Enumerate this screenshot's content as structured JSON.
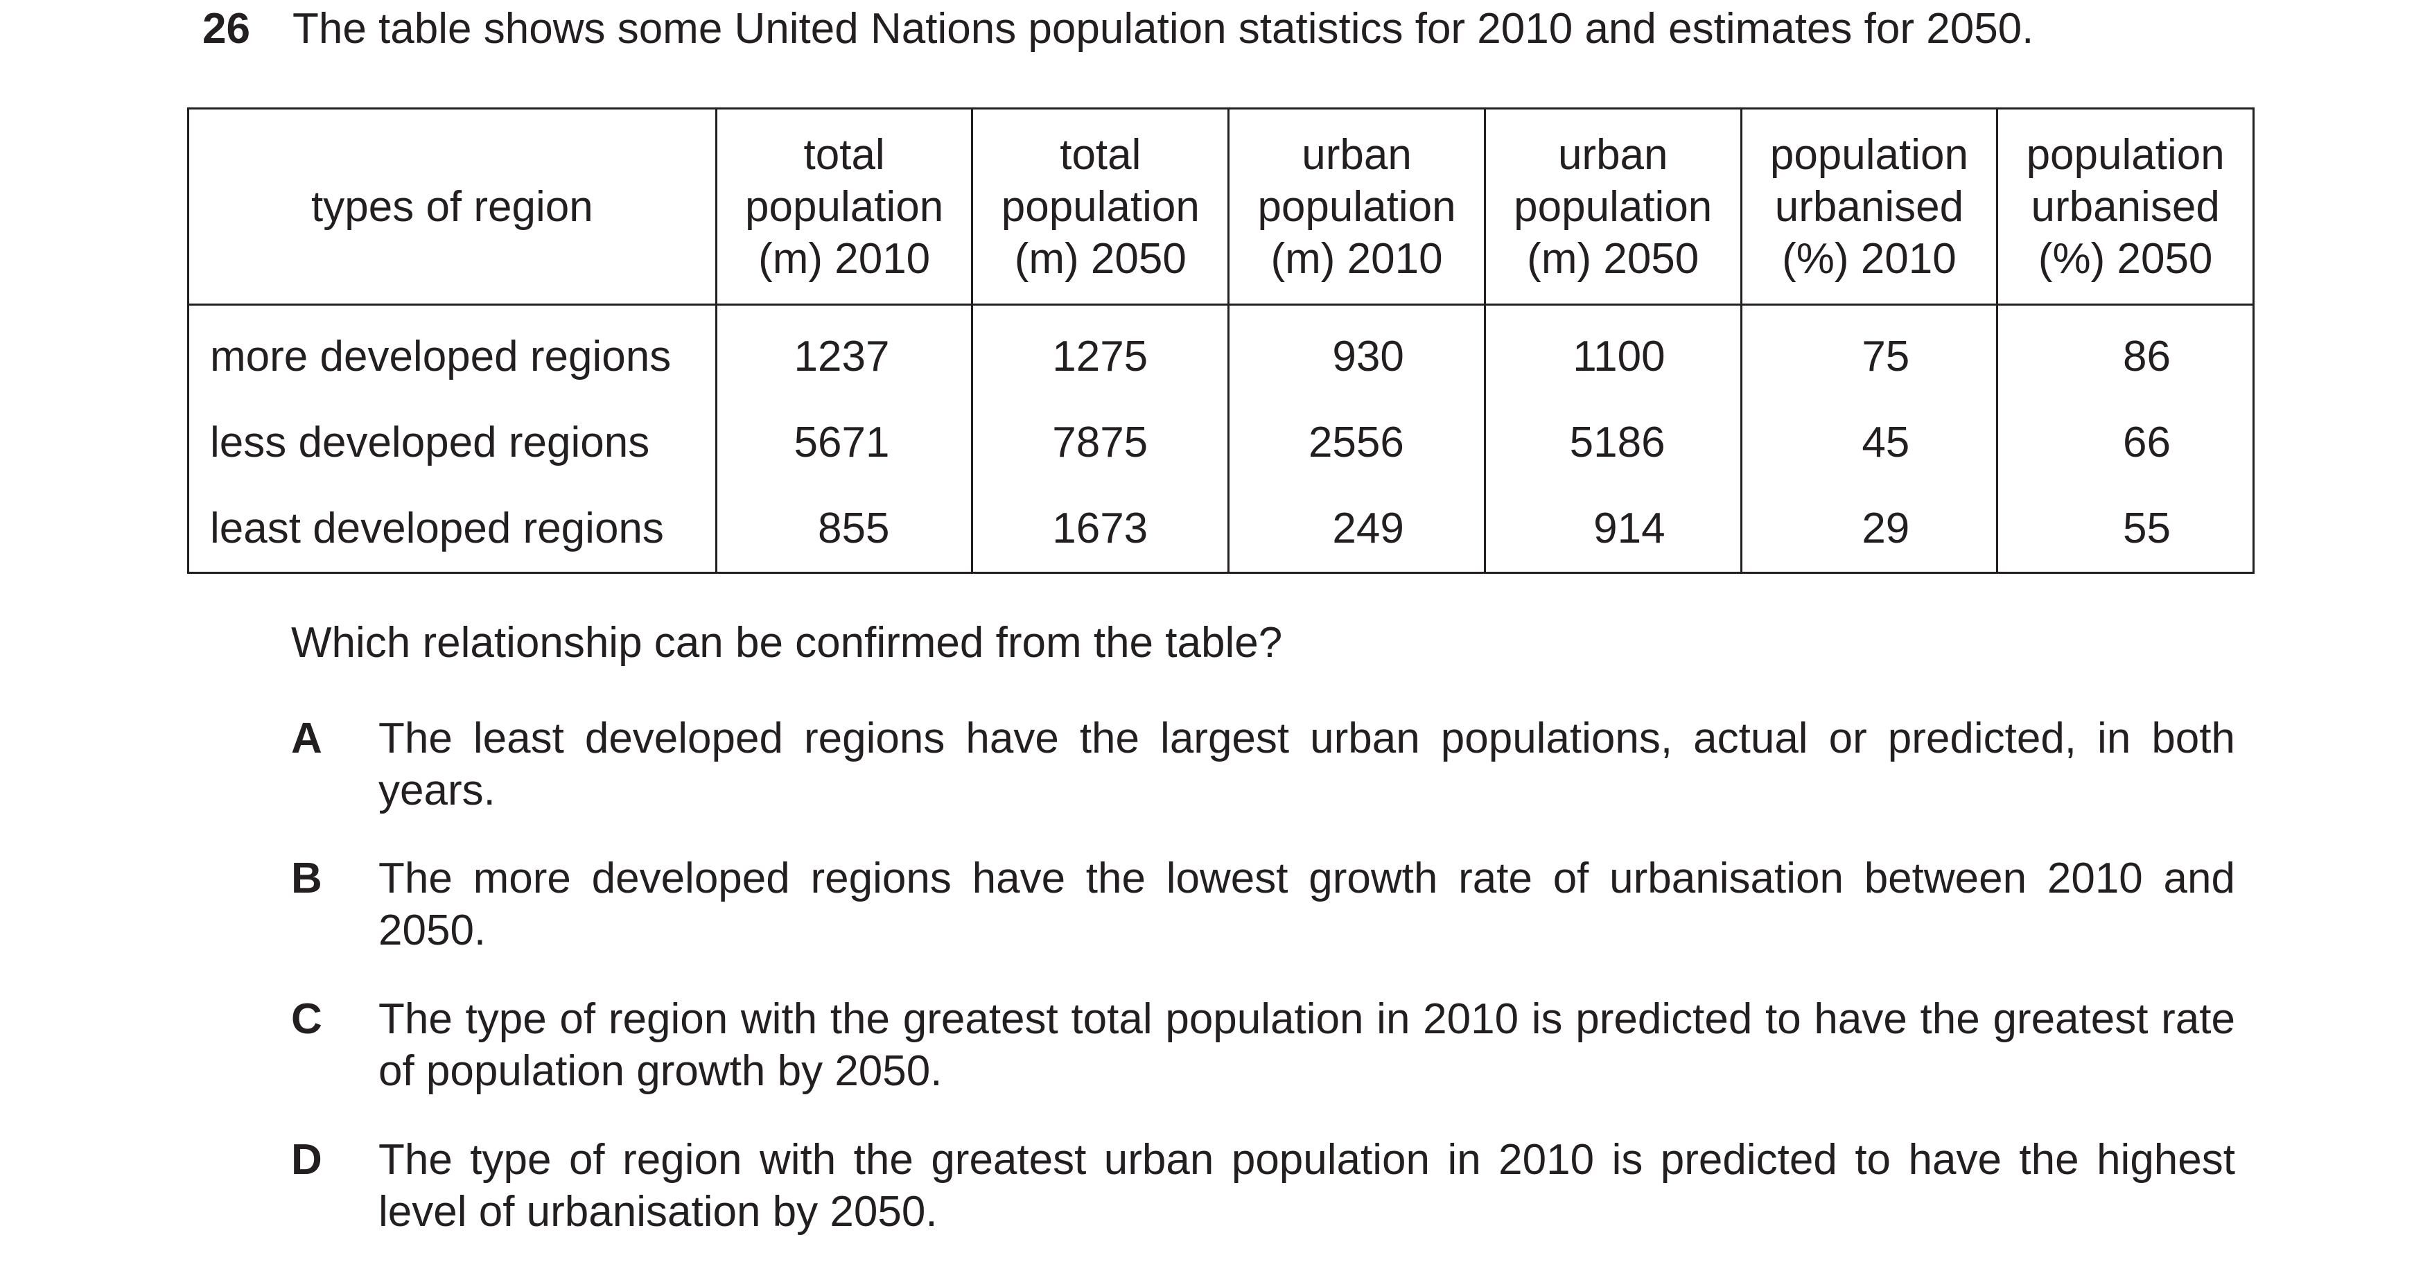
{
  "question": {
    "number": "26",
    "text": "The table shows some United Nations population statistics for 2010 and estimates for 2050."
  },
  "table": {
    "headers": [
      [
        "types of region"
      ],
      [
        "total",
        "population",
        "(m) 2010"
      ],
      [
        "total",
        "population",
        "(m) 2050"
      ],
      [
        "urban",
        "population",
        "(m) 2010"
      ],
      [
        "urban",
        "population",
        "(m) 2050"
      ],
      [
        "population",
        "urbanised",
        "(%) 2010"
      ],
      [
        "population",
        "urbanised",
        "(%) 2050"
      ]
    ],
    "rows": [
      [
        "more developed regions",
        "1237",
        "1275",
        "930",
        "1100",
        "75",
        "86"
      ],
      [
        "less developed regions",
        "5671",
        "7875",
        "2556",
        "5186",
        "45",
        "66"
      ],
      [
        "least developed regions",
        "855",
        "1673",
        "249",
        "914",
        "29",
        "55"
      ]
    ]
  },
  "prompt": "Which relationship can be confirmed from the table?",
  "options": [
    {
      "letter": "A",
      "text": "The least developed regions have the largest urban populations, actual or predicted, in both years."
    },
    {
      "letter": "B",
      "text": "The more developed regions have the lowest growth rate of urbanisation between 2010 and 2050."
    },
    {
      "letter": "C",
      "text": "The type of region with the greatest total population in 2010 is predicted to have the greatest rate of population growth by 2050."
    },
    {
      "letter": "D",
      "text": "The type of region with the greatest urban population in 2010 is predicted to have the highest level of urbanisation by 2050."
    }
  ]
}
